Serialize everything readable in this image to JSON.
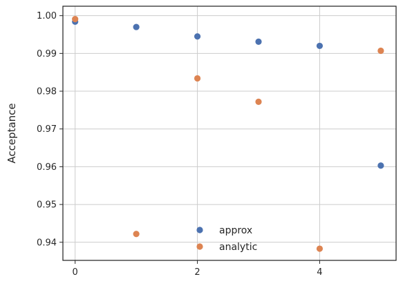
{
  "chart_data": {
    "type": "scatter",
    "title": "",
    "xlabel": "",
    "ylabel": "Acceptance",
    "xlim": [
      -0.2,
      5.25
    ],
    "ylim": [
      0.9352,
      1.0025
    ],
    "xticks": [
      0,
      2,
      4
    ],
    "yticks": [
      0.94,
      0.95,
      0.96,
      0.97,
      0.98,
      0.99,
      1.0
    ],
    "xtick_labels": [
      "0",
      "2",
      "4"
    ],
    "ytick_labels": [
      "0.94",
      "0.95",
      "0.96",
      "0.97",
      "0.98",
      "0.99",
      "1.00"
    ],
    "grid": true,
    "legend_position": "lower-center",
    "series": [
      {
        "name": "approx",
        "color": "#4c72b0",
        "x": [
          0,
          1,
          2,
          3,
          4,
          5
        ],
        "y": [
          0.9984,
          0.997,
          0.9945,
          0.9931,
          0.992,
          0.9603
        ]
      },
      {
        "name": "analytic",
        "color": "#dd8452",
        "x": [
          0,
          1,
          2,
          3,
          4,
          5
        ],
        "y": [
          0.9991,
          0.9422,
          0.9834,
          0.9772,
          0.9383,
          0.9907
        ]
      }
    ]
  }
}
